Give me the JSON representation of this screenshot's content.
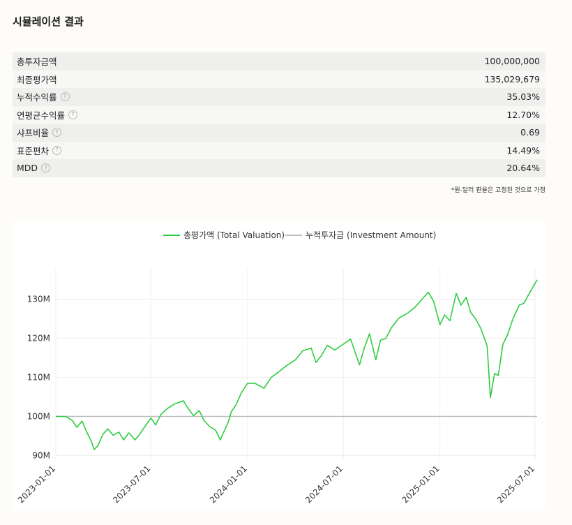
{
  "page": {
    "title": "시뮬레이션 결과"
  },
  "stats": [
    {
      "label": "총투자금액",
      "value": "100,000,000",
      "help": false
    },
    {
      "label": "최종평가액",
      "value": "135,029,679",
      "help": false
    },
    {
      "label": "누적수익률",
      "value": "35.03%",
      "help": true
    },
    {
      "label": "연평균수익률",
      "value": "12.70%",
      "help": true
    },
    {
      "label": "샤프비율",
      "value": "0.69",
      "help": true
    },
    {
      "label": "표준편차",
      "value": "14.49%",
      "help": true
    },
    {
      "label": "MDD",
      "value": "20.64%",
      "help": true
    }
  ],
  "help_glyph": "?",
  "note": "*원-달러 환율은 고정된 것으로 가정",
  "colors": {
    "valuation": "#2ecc40",
    "invested": "#bdbdbd",
    "grid": "#eeeeee"
  },
  "chart_data": {
    "type": "line",
    "x_ticks": [
      "2023-01-01",
      "2023-07-01",
      "2024-01-01",
      "2024-07-01",
      "2025-01-01",
      "2025-07-01"
    ],
    "y_ticks": [
      "90M",
      "100M",
      "110M",
      "120M",
      "130M"
    ],
    "ylim": [
      89,
      138
    ],
    "xlim": [
      "2023-01-01",
      "2025-07-05"
    ],
    "legend_position": "top-center",
    "series": [
      {
        "name": "총평가액 (Total Valuation)",
        "points": [
          [
            "2023-01-01",
            100.0
          ],
          [
            "2023-01-20",
            100.0
          ],
          [
            "2023-02-01",
            99.0
          ],
          [
            "2023-02-10",
            97.2
          ],
          [
            "2023-02-20",
            98.8
          ],
          [
            "2023-03-01",
            96.0
          ],
          [
            "2023-03-10",
            93.5
          ],
          [
            "2023-03-15",
            91.5
          ],
          [
            "2023-03-22",
            92.5
          ],
          [
            "2023-04-01",
            95.5
          ],
          [
            "2023-04-10",
            96.8
          ],
          [
            "2023-04-20",
            95.2
          ],
          [
            "2023-05-01",
            96.0
          ],
          [
            "2023-05-10",
            94.0
          ],
          [
            "2023-05-20",
            95.8
          ],
          [
            "2023-06-01",
            94.0
          ],
          [
            "2023-06-10",
            95.5
          ],
          [
            "2023-06-20",
            97.5
          ],
          [
            "2023-07-01",
            99.6
          ],
          [
            "2023-07-10",
            97.8
          ],
          [
            "2023-07-20",
            100.5
          ],
          [
            "2023-08-01",
            102.0
          ],
          [
            "2023-08-15",
            103.2
          ],
          [
            "2023-09-01",
            104.0
          ],
          [
            "2023-09-10",
            102.0
          ],
          [
            "2023-09-20",
            100.2
          ],
          [
            "2023-10-01",
            101.5
          ],
          [
            "2023-10-10",
            99.0
          ],
          [
            "2023-10-20",
            97.5
          ],
          [
            "2023-11-01",
            96.5
          ],
          [
            "2023-11-10",
            94.0
          ],
          [
            "2023-11-15",
            95.5
          ],
          [
            "2023-11-25",
            98.5
          ],
          [
            "2023-12-01",
            101.2
          ],
          [
            "2023-12-10",
            103.0
          ],
          [
            "2023-12-20",
            106.0
          ],
          [
            "2024-01-01",
            108.5
          ],
          [
            "2024-01-15",
            108.5
          ],
          [
            "2024-02-01",
            107.2
          ],
          [
            "2024-02-15",
            110.0
          ],
          [
            "2024-03-01",
            111.5
          ],
          [
            "2024-03-15",
            113.0
          ],
          [
            "2024-04-01",
            114.5
          ],
          [
            "2024-04-15",
            116.8
          ],
          [
            "2024-05-01",
            117.5
          ],
          [
            "2024-05-10",
            113.8
          ],
          [
            "2024-05-20",
            115.5
          ],
          [
            "2024-06-01",
            118.2
          ],
          [
            "2024-06-15",
            117.0
          ],
          [
            "2024-07-01",
            118.5
          ],
          [
            "2024-07-15",
            119.8
          ],
          [
            "2024-08-01",
            113.2
          ],
          [
            "2024-08-10",
            117.5
          ],
          [
            "2024-08-20",
            121.2
          ],
          [
            "2024-09-01",
            114.5
          ],
          [
            "2024-09-10",
            119.5
          ],
          [
            "2024-09-20",
            120.0
          ],
          [
            "2024-10-01",
            122.8
          ],
          [
            "2024-10-15",
            125.2
          ],
          [
            "2024-11-01",
            126.5
          ],
          [
            "2024-11-15",
            128.0
          ],
          [
            "2024-12-01",
            130.5
          ],
          [
            "2024-12-10",
            131.8
          ],
          [
            "2024-12-20",
            129.5
          ],
          [
            "2025-01-01",
            123.5
          ],
          [
            "2025-01-10",
            126.0
          ],
          [
            "2025-01-20",
            124.5
          ],
          [
            "2025-02-01",
            131.5
          ],
          [
            "2025-02-10",
            128.5
          ],
          [
            "2025-02-20",
            130.5
          ],
          [
            "2025-03-01",
            126.5
          ],
          [
            "2025-03-10",
            125.0
          ],
          [
            "2025-03-20",
            122.5
          ],
          [
            "2025-04-01",
            118.0
          ],
          [
            "2025-04-07",
            104.8
          ],
          [
            "2025-04-15",
            111.0
          ],
          [
            "2025-04-22",
            110.5
          ],
          [
            "2025-05-01",
            118.5
          ],
          [
            "2025-05-10",
            121.0
          ],
          [
            "2025-05-20",
            125.0
          ],
          [
            "2025-06-01",
            128.5
          ],
          [
            "2025-06-10",
            129.0
          ],
          [
            "2025-06-20",
            131.5
          ],
          [
            "2025-07-05",
            135.0
          ]
        ]
      },
      {
        "name": "누적투자금 (Investment Amount)",
        "points": [
          [
            "2023-01-01",
            100.0
          ],
          [
            "2025-07-05",
            100.0
          ]
        ]
      }
    ]
  }
}
